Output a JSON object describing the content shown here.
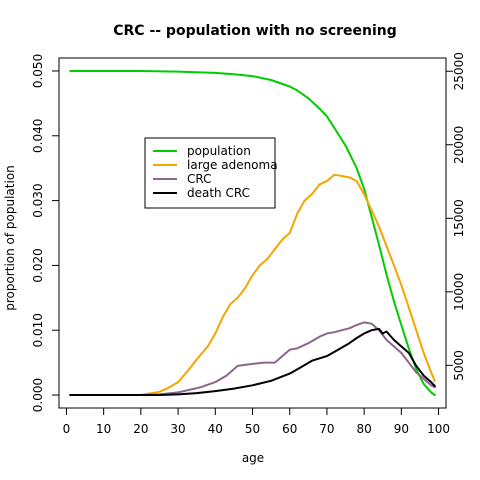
{
  "chart_data": {
    "type": "line",
    "title": "CRC -- population with no screening",
    "xlabel": "age",
    "ylabel": "proportion of population",
    "xlim": [
      -2,
      102
    ],
    "ylim": [
      -0.002,
      0.052
    ],
    "y2lim": [
      2100,
      25900
    ],
    "x_ticks": [
      0,
      10,
      20,
      30,
      40,
      50,
      60,
      70,
      80,
      90,
      100
    ],
    "y_ticks": [
      0.0,
      0.01,
      0.02,
      0.03,
      0.04,
      0.05
    ],
    "y_tick_labels": [
      "0.000",
      "0.010",
      "0.020",
      "0.030",
      "0.040",
      "0.050"
    ],
    "y2_ticks": [
      5000,
      10000,
      15000,
      20000,
      25000
    ],
    "y2_tick_labels": [
      "5000",
      "10000",
      "15000",
      "20000",
      "25000"
    ],
    "legend": {
      "position": "upper-left-inside"
    },
    "series": [
      {
        "name": "population",
        "color": "#00cc00",
        "axis": "left",
        "x": [
          1,
          10,
          20,
          30,
          40,
          45,
          50,
          55,
          60,
          62,
          65,
          68,
          70,
          72,
          75,
          78,
          80,
          82,
          84,
          86,
          88,
          90,
          92,
          94,
          96,
          98,
          99
        ],
        "values": [
          0.05,
          0.05,
          0.05,
          0.0499,
          0.0497,
          0.0495,
          0.0492,
          0.0486,
          0.0476,
          0.047,
          0.0458,
          0.0442,
          0.043,
          0.0412,
          0.0385,
          0.035,
          0.0318,
          0.0275,
          0.0232,
          0.0186,
          0.0145,
          0.0108,
          0.0072,
          0.004,
          0.0017,
          0.0004,
          0.0
        ]
      },
      {
        "name": "large adenoma",
        "color": "#f5a500",
        "axis": "left",
        "x": [
          1,
          10,
          20,
          22,
          25,
          27,
          30,
          33,
          35,
          38,
          40,
          42,
          44,
          46,
          48,
          50,
          52,
          54,
          56,
          58,
          60,
          62,
          64,
          66,
          68,
          70,
          72,
          74,
          76,
          78,
          80,
          82,
          84,
          86,
          88,
          90,
          92,
          94,
          96,
          98,
          99
        ],
        "values": [
          0.0,
          0.0,
          0.0,
          0.0002,
          0.0005,
          0.001,
          0.002,
          0.004,
          0.0055,
          0.0075,
          0.0095,
          0.012,
          0.014,
          0.015,
          0.0165,
          0.0185,
          0.02,
          0.021,
          0.0225,
          0.024,
          0.025,
          0.028,
          0.03,
          0.031,
          0.0325,
          0.033,
          0.034,
          0.0338,
          0.0336,
          0.033,
          0.031,
          0.0285,
          0.026,
          0.023,
          0.02,
          0.017,
          0.0135,
          0.01,
          0.0065,
          0.0035,
          0.0022
        ]
      },
      {
        "name": "CRC",
        "color": "#8b668b",
        "axis": "left",
        "x": [
          1,
          10,
          20,
          25,
          30,
          33,
          36,
          40,
          43,
          46,
          50,
          53,
          56,
          58,
          60,
          62,
          65,
          68,
          70,
          72,
          74,
          76,
          78,
          80,
          82,
          84,
          86,
          88,
          90,
          92,
          94,
          96,
          98,
          99
        ],
        "values": [
          0.0,
          0.0,
          0.0,
          0.0001,
          0.0004,
          0.0008,
          0.0012,
          0.002,
          0.003,
          0.0045,
          0.0048,
          0.005,
          0.005,
          0.006,
          0.007,
          0.0072,
          0.008,
          0.009,
          0.0095,
          0.0097,
          0.01,
          0.0103,
          0.0108,
          0.0112,
          0.011,
          0.01,
          0.0085,
          0.0075,
          0.0065,
          0.005,
          0.0035,
          0.0025,
          0.0015,
          0.0012
        ]
      },
      {
        "name": "death CRC",
        "color": "#000000",
        "axis": "left",
        "x": [
          1,
          10,
          20,
          25,
          30,
          35,
          40,
          45,
          50,
          55,
          60,
          63,
          66,
          70,
          73,
          76,
          78,
          80,
          82,
          84,
          85,
          86,
          88,
          90,
          92,
          94,
          96,
          98,
          99
        ],
        "values": [
          0.0,
          0.0,
          0.0,
          0.0,
          0.0001,
          0.0003,
          0.0006,
          0.001,
          0.0015,
          0.0022,
          0.0033,
          0.0043,
          0.0053,
          0.006,
          0.007,
          0.008,
          0.0088,
          0.0095,
          0.01,
          0.0102,
          0.0095,
          0.0098,
          0.0085,
          0.0075,
          0.0065,
          0.0045,
          0.003,
          0.002,
          0.0014
        ]
      }
    ]
  }
}
